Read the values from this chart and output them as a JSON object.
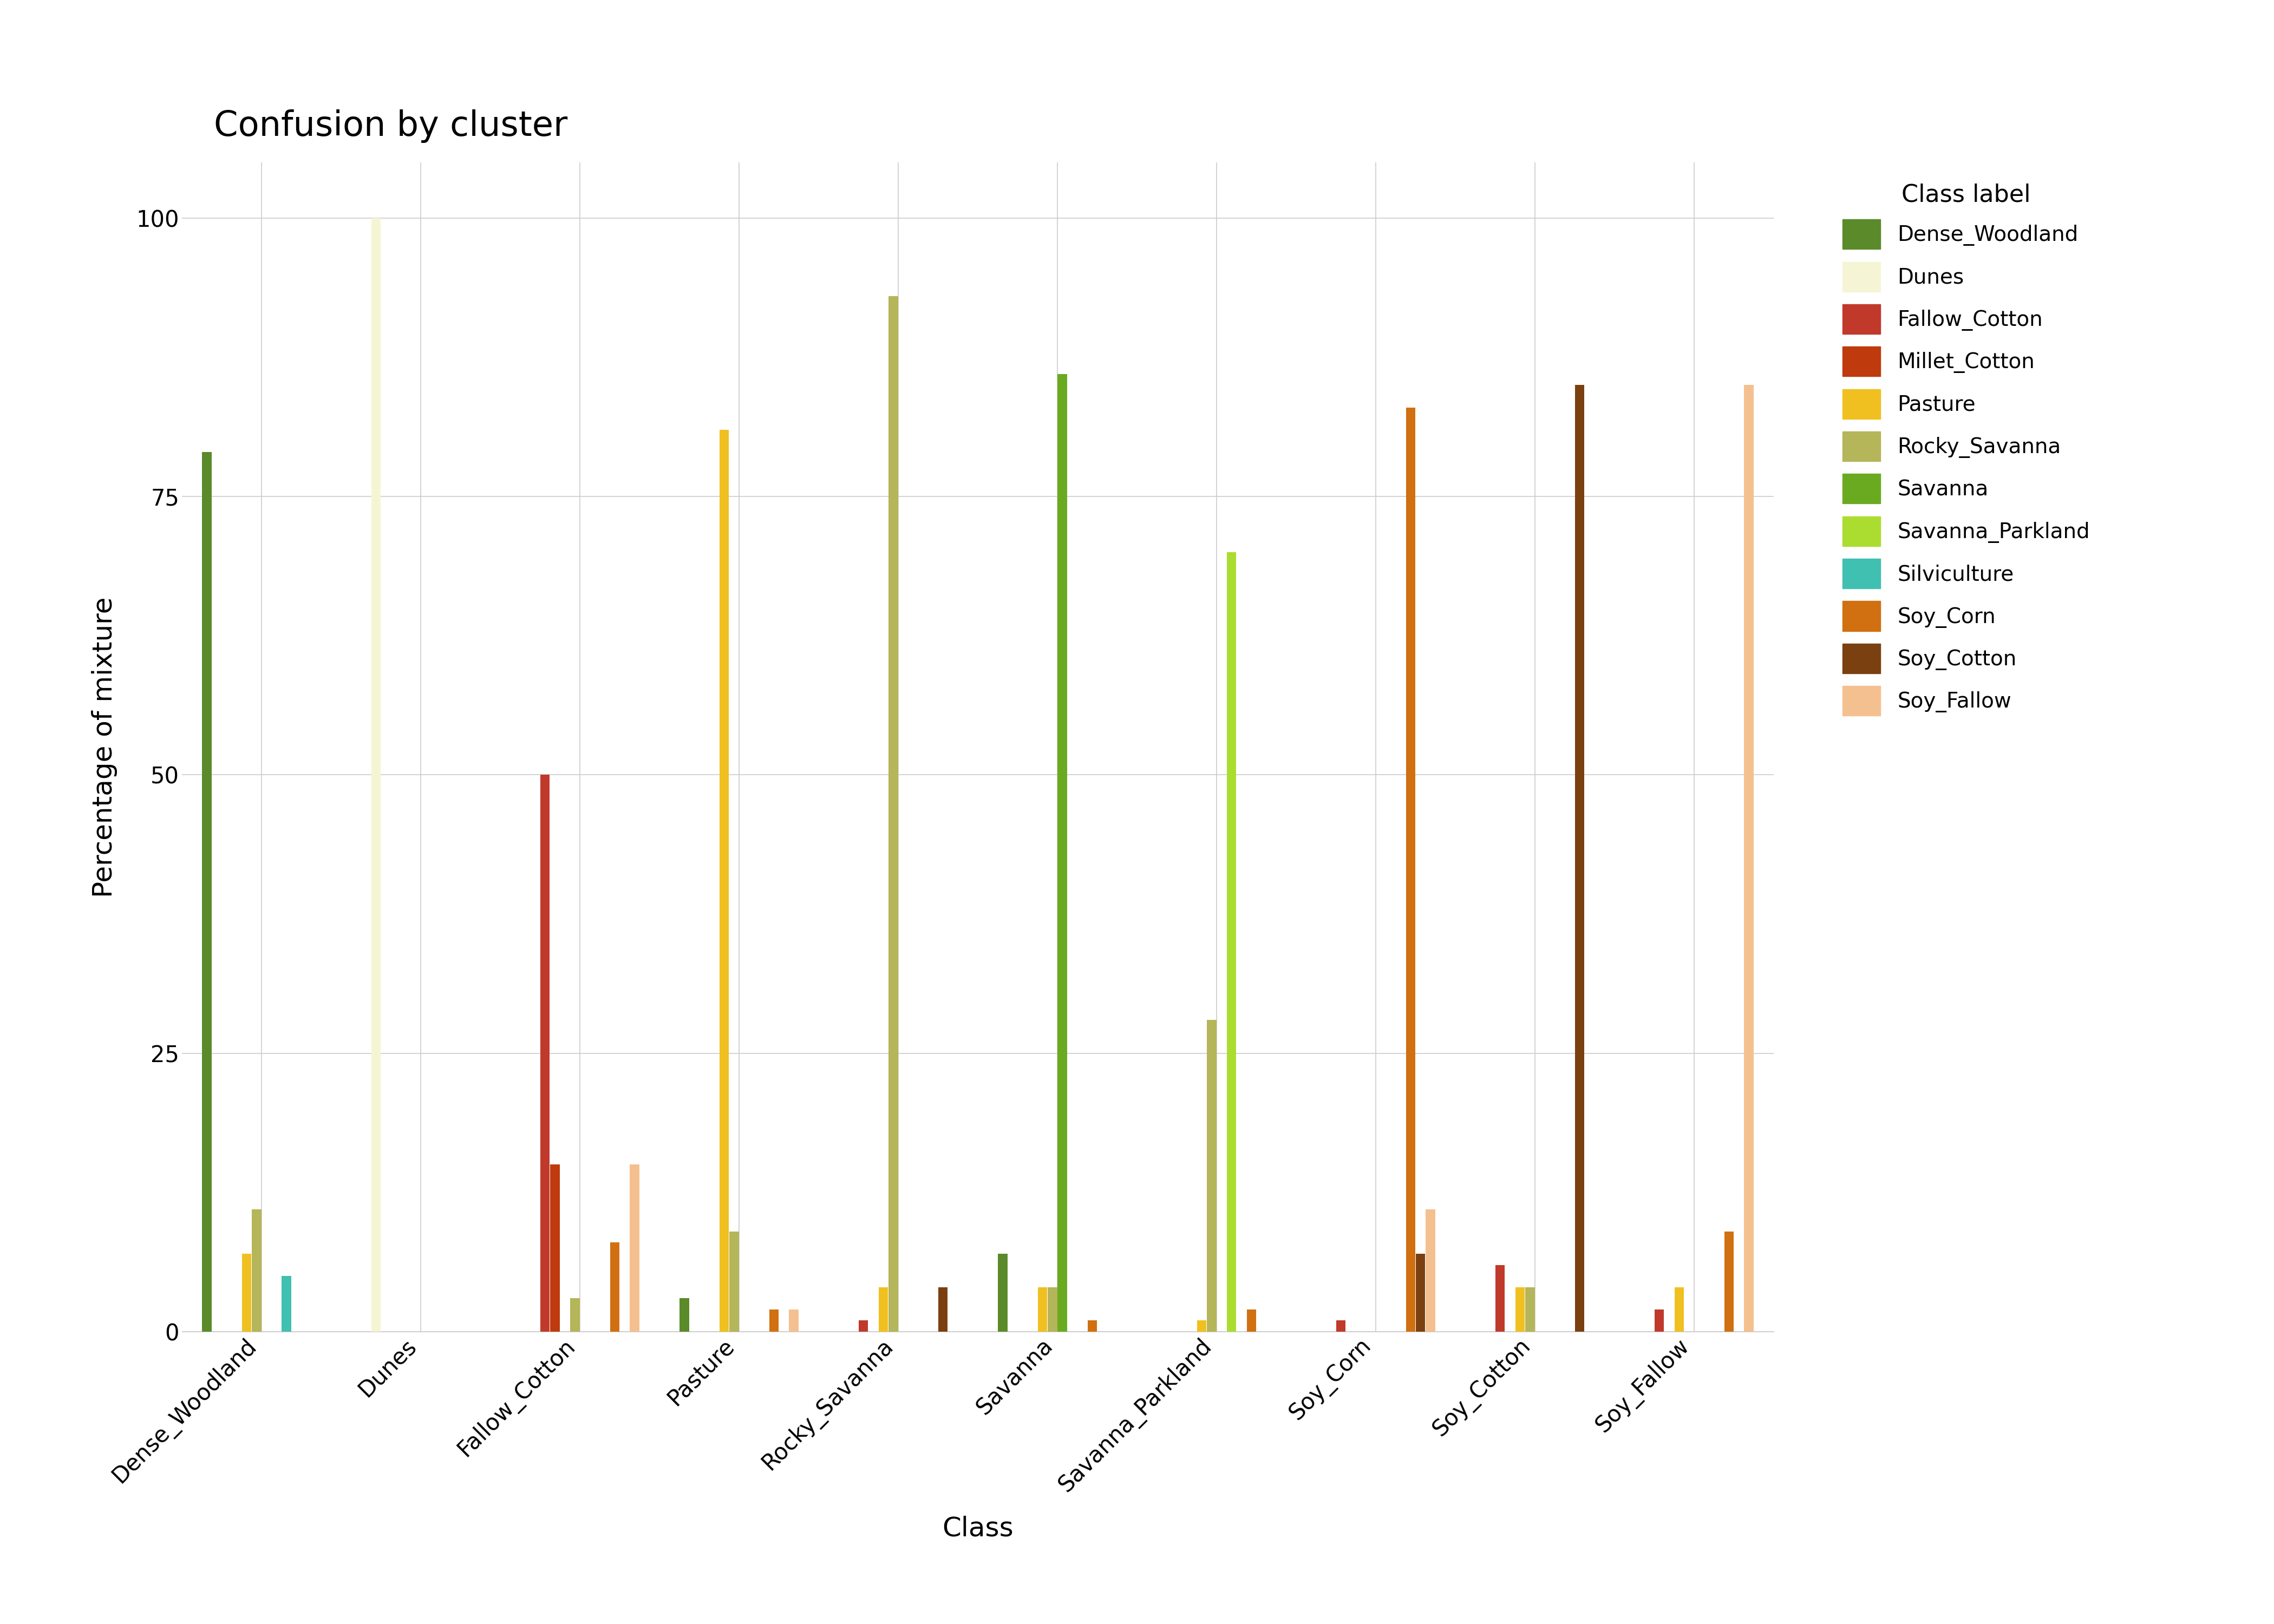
{
  "title": "Confusion by cluster",
  "xlabel": "Class",
  "ylabel": "Percentage of mixture",
  "legend_title": "Class label",
  "background_color": "#ffffff",
  "ylim": [
    0,
    105
  ],
  "yticks": [
    0,
    25,
    50,
    75,
    100
  ],
  "classes": [
    "Dense_Woodland",
    "Dunes",
    "Fallow_Cotton",
    "Pasture",
    "Rocky_Savanna",
    "Savanna",
    "Savanna_Parkland",
    "Soy_Corn",
    "Soy_Cotton",
    "Soy_Fallow"
  ],
  "labels": [
    "Dense_Woodland",
    "Dunes",
    "Fallow_Cotton",
    "Millet_Cotton",
    "Pasture",
    "Rocky_Savanna",
    "Savanna",
    "Savanna_Parkland",
    "Silviculture",
    "Soy_Corn",
    "Soy_Cotton",
    "Soy_Fallow"
  ],
  "colors": {
    "Dense_Woodland": "#5a8a2a",
    "Dunes": "#f5f5d5",
    "Fallow_Cotton": "#c0392b",
    "Millet_Cotton": "#bf3a0c",
    "Pasture": "#f0c020",
    "Rocky_Savanna": "#b5b55a",
    "Savanna": "#6aaa20",
    "Savanna_Parkland": "#aadd30",
    "Silviculture": "#40c0b0",
    "Soy_Corn": "#d07010",
    "Soy_Cotton": "#7a4010",
    "Soy_Fallow": "#f5c090"
  },
  "data": {
    "Dense_Woodland": {
      "Dense_Woodland": 79,
      "Dunes": 0,
      "Fallow_Cotton": 0,
      "Millet_Cotton": 0,
      "Pasture": 7,
      "Rocky_Savanna": 11,
      "Savanna": 0,
      "Savanna_Parkland": 0,
      "Silviculture": 5,
      "Soy_Corn": 0,
      "Soy_Cotton": 0,
      "Soy_Fallow": 0
    },
    "Dunes": {
      "Dense_Woodland": 0,
      "Dunes": 100,
      "Fallow_Cotton": 0,
      "Millet_Cotton": 0,
      "Pasture": 0,
      "Rocky_Savanna": 0,
      "Savanna": 0,
      "Savanna_Parkland": 0,
      "Silviculture": 0,
      "Soy_Corn": 0,
      "Soy_Cotton": 0,
      "Soy_Fallow": 0
    },
    "Fallow_Cotton": {
      "Dense_Woodland": 0,
      "Dunes": 0,
      "Fallow_Cotton": 50,
      "Millet_Cotton": 15,
      "Pasture": 0,
      "Rocky_Savanna": 3,
      "Savanna": 0,
      "Savanna_Parkland": 0,
      "Silviculture": 0,
      "Soy_Corn": 8,
      "Soy_Cotton": 0,
      "Soy_Fallow": 15
    },
    "Pasture": {
      "Dense_Woodland": 3,
      "Dunes": 0,
      "Fallow_Cotton": 0,
      "Millet_Cotton": 0,
      "Pasture": 81,
      "Rocky_Savanna": 9,
      "Savanna": 0,
      "Savanna_Parkland": 0,
      "Silviculture": 0,
      "Soy_Corn": 2,
      "Soy_Cotton": 0,
      "Soy_Fallow": 2
    },
    "Rocky_Savanna": {
      "Dense_Woodland": 0,
      "Dunes": 0,
      "Fallow_Cotton": 1,
      "Millet_Cotton": 0,
      "Pasture": 4,
      "Rocky_Savanna": 93,
      "Savanna": 0,
      "Savanna_Parkland": 0,
      "Silviculture": 0,
      "Soy_Corn": 0,
      "Soy_Cotton": 4,
      "Soy_Fallow": 0
    },
    "Savanna": {
      "Dense_Woodland": 7,
      "Dunes": 0,
      "Fallow_Cotton": 0,
      "Millet_Cotton": 0,
      "Pasture": 4,
      "Rocky_Savanna": 4,
      "Savanna": 86,
      "Savanna_Parkland": 0,
      "Silviculture": 0,
      "Soy_Corn": 1,
      "Soy_Cotton": 0,
      "Soy_Fallow": 0
    },
    "Savanna_Parkland": {
      "Dense_Woodland": 0,
      "Dunes": 0,
      "Fallow_Cotton": 0,
      "Millet_Cotton": 0,
      "Pasture": 1,
      "Rocky_Savanna": 28,
      "Savanna": 0,
      "Savanna_Parkland": 70,
      "Silviculture": 0,
      "Soy_Corn": 2,
      "Soy_Cotton": 0,
      "Soy_Fallow": 0
    },
    "Soy_Corn": {
      "Dense_Woodland": 0,
      "Dunes": 0,
      "Fallow_Cotton": 1,
      "Millet_Cotton": 0,
      "Pasture": 0,
      "Rocky_Savanna": 0,
      "Savanna": 0,
      "Savanna_Parkland": 0,
      "Silviculture": 0,
      "Soy_Corn": 83,
      "Soy_Cotton": 7,
      "Soy_Fallow": 11
    },
    "Soy_Cotton": {
      "Dense_Woodland": 0,
      "Dunes": 0,
      "Fallow_Cotton": 6,
      "Millet_Cotton": 0,
      "Pasture": 4,
      "Rocky_Savanna": 4,
      "Savanna": 0,
      "Savanna_Parkland": 0,
      "Silviculture": 0,
      "Soy_Corn": 0,
      "Soy_Cotton": 85,
      "Soy_Fallow": 0
    },
    "Soy_Fallow": {
      "Dense_Woodland": 0,
      "Dunes": 0,
      "Fallow_Cotton": 2,
      "Millet_Cotton": 0,
      "Pasture": 4,
      "Rocky_Savanna": 0,
      "Savanna": 0,
      "Savanna_Parkland": 0,
      "Silviculture": 0,
      "Soy_Corn": 9,
      "Soy_Cotton": 0,
      "Soy_Fallow": 85
    }
  }
}
